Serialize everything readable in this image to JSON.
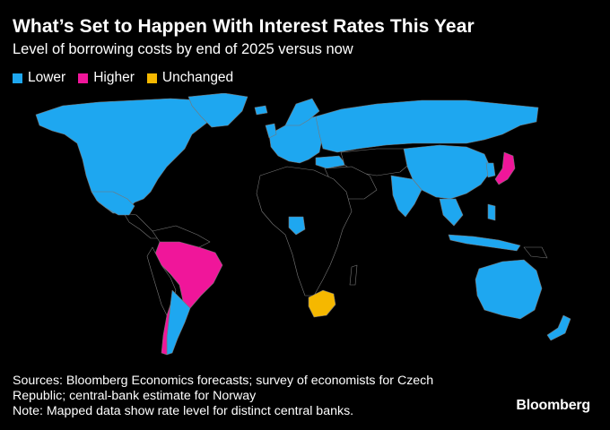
{
  "header": {
    "title": "What’s Set to Happen With Interest Rates This Year",
    "subtitle": "Level of borrowing costs by end of 2025 versus now"
  },
  "legend": [
    {
      "label": "Lower",
      "color": "#1ea7f0"
    },
    {
      "label": "Higher",
      "color": "#f0169a"
    },
    {
      "label": "Unchanged",
      "color": "#f5b800"
    }
  ],
  "colors": {
    "lower": "#1ea7f0",
    "higher": "#f0169a",
    "unchanged": "#f5b800",
    "no_data": "#000000",
    "border": "#777777"
  },
  "footer": {
    "sources_line1": "Sources: Bloomberg Economics forecasts; survey of economists for Czech",
    "sources_line2": "Republic; central-bank estimate for Norway",
    "note": "Note: Mapped data show rate level for distinct central banks."
  },
  "brand": "Bloomberg"
}
